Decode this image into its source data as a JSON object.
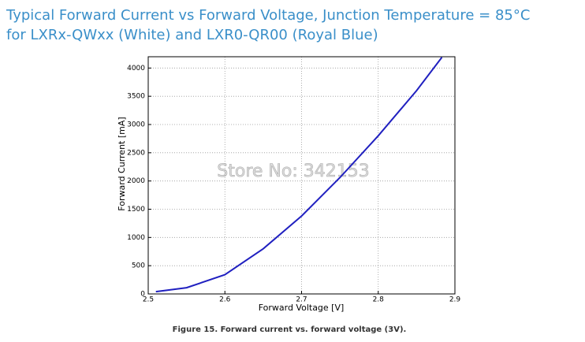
{
  "chart_data": {
    "type": "line",
    "title": "Typical Forward Current vs Forward Voltage, Junction Temperature = 85°C",
    "subtitle": "for LXRx-QWxx (White) and LXR0-QR00 (Royal Blue)",
    "x_label": "Forward Voltage [V]",
    "y_label": "Forward Current [mA]",
    "annotation": "Store No: 342153",
    "caption": "Figure 15.  Forward current vs. forward voltage (3V).",
    "x": [
      2.51,
      2.55,
      2.6,
      2.65,
      2.7,
      2.75,
      2.8,
      2.85,
      2.883
    ],
    "series": [
      {
        "name": "Forward current",
        "color": "#2020c0",
        "values": [
          40,
          110,
          340,
          800,
          1380,
          2060,
          2800,
          3600,
          4190
        ]
      }
    ],
    "xlim": [
      2.5,
      2.9
    ],
    "ylim": [
      0,
      4200
    ],
    "xticks": [
      2.5,
      2.6,
      2.7,
      2.8,
      2.9
    ],
    "yticks": [
      0,
      500,
      1000,
      1500,
      2000,
      2500,
      3000,
      3500,
      4000
    ],
    "grid": true
  }
}
